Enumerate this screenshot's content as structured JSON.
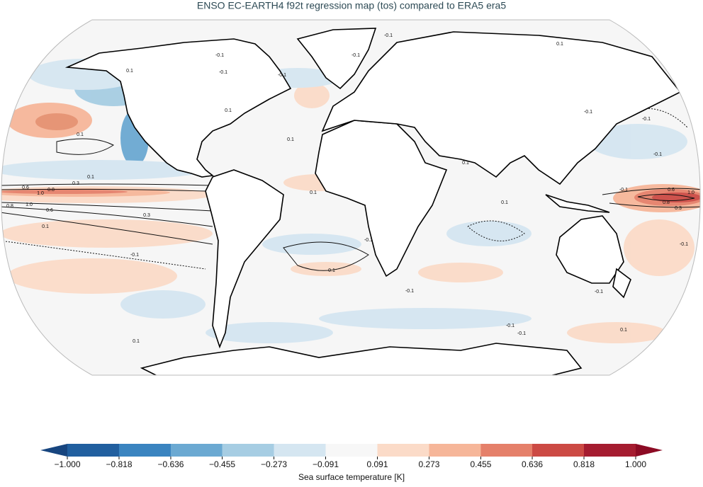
{
  "chart_data": {
    "type": "map",
    "title": "ENSO EC-EARTH4 f92t regression map (tos) compared to ERA5 era5",
    "contour_labels": [
      "-0.1",
      "-0.1",
      "-0.1",
      "0.1",
      "0.1",
      "-0.1",
      "-0.1",
      "0.1",
      "-0.1",
      "-0.1",
      "0.1",
      "0.1",
      "-0.1",
      "0.1",
      "0.3",
      "0.6",
      "0.8",
      "1.0",
      "0.8",
      "1.0",
      "0.6",
      "0.3",
      "0.1",
      "-0.1",
      "0.1",
      "0.1",
      "-0.1",
      "0.6",
      "1.0",
      "0.8",
      "0.3",
      "-0.1",
      "0.1",
      "-0.1",
      "0.1",
      "-0.1",
      "-0.1",
      "0.1",
      "-0.1",
      "-0.1",
      "0.1"
    ],
    "colorbar": {
      "label": "Sea surface temperature [K]",
      "ticks": [
        {
          "value": -1.0,
          "label": "−1.000"
        },
        {
          "value": -0.818,
          "label": "−0.818"
        },
        {
          "value": -0.636,
          "label": "−0.636"
        },
        {
          "value": -0.455,
          "label": "−0.455"
        },
        {
          "value": -0.273,
          "label": "−0.273"
        },
        {
          "value": -0.091,
          "label": "−0.091"
        },
        {
          "value": 0.091,
          "label": "0.091"
        },
        {
          "value": 0.273,
          "label": "0.273"
        },
        {
          "value": 0.455,
          "label": "0.455"
        },
        {
          "value": 0.636,
          "label": "0.636"
        },
        {
          "value": 0.818,
          "label": "0.818"
        },
        {
          "value": 1.0,
          "label": "1.000"
        }
      ],
      "colors": [
        "#215f9f",
        "#3a84c0",
        "#6ba9d2",
        "#a6cde3",
        "#d5e6f1",
        "#f7f7f7",
        "#fbdbc8",
        "#f6b699",
        "#e5806a",
        "#cc4a44",
        "#a51c30"
      ],
      "extend_colors": [
        "#17457f",
        "#8c0b24"
      ]
    }
  }
}
